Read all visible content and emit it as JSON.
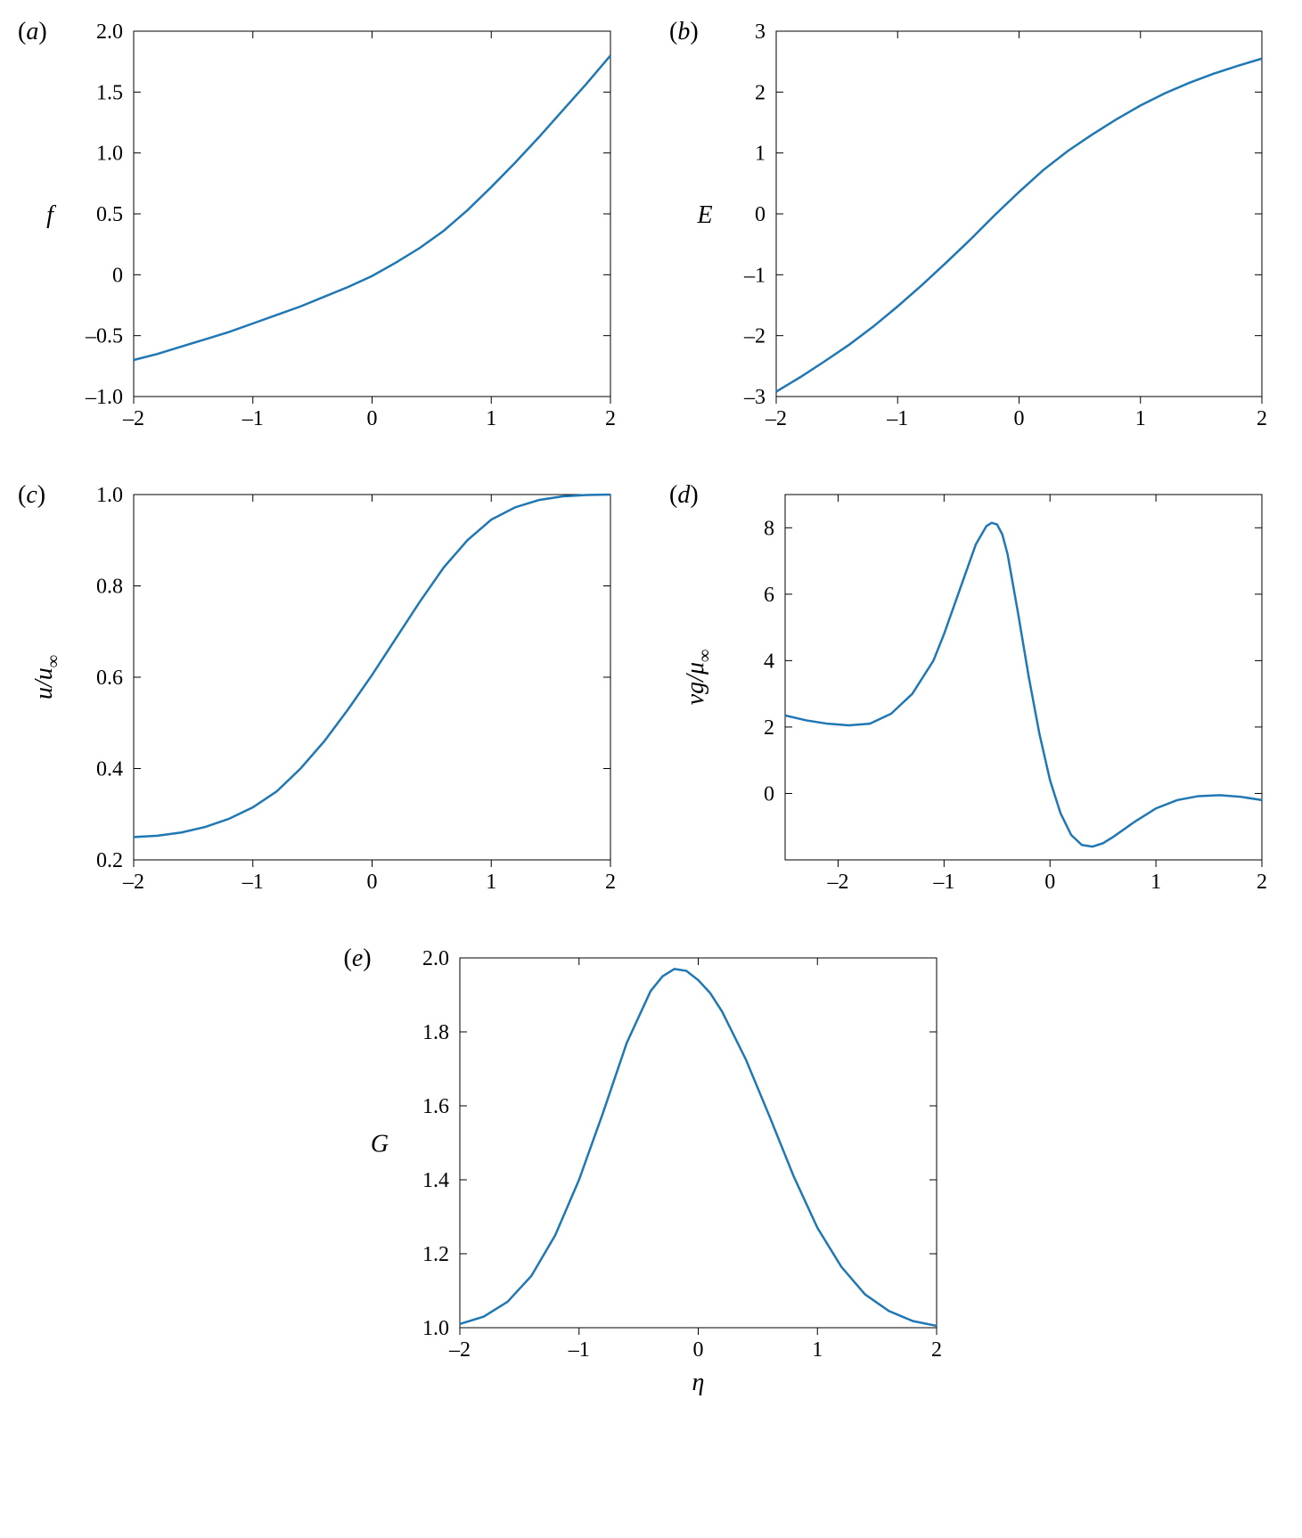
{
  "figure": {
    "background_color": "#ffffff",
    "curve_color": "#1f77b4",
    "axis_color": "#000000",
    "label_fontsize": 24,
    "title_fontsize": 28,
    "panel_label_fontsize": 28,
    "line_width": 2.5,
    "panels": {
      "a": {
        "label": "a",
        "type": "line",
        "ylabel": "f",
        "xlim": [
          -2,
          2
        ],
        "ylim": [
          -1.0,
          2.0
        ],
        "xticks": [
          -2,
          -1,
          0,
          1,
          2
        ],
        "yticks": [
          -1.0,
          -0.5,
          0,
          0.5,
          1.0,
          1.5,
          2.0
        ],
        "xtick_labels": [
          "–2",
          "–1",
          "0",
          "1",
          "2"
        ],
        "ytick_labels": [
          "–1.0",
          "–0.5",
          "0",
          "0.5",
          "1.0",
          "1.5",
          "2.0"
        ],
        "data": [
          [
            -2.0,
            -0.7
          ],
          [
            -1.8,
            -0.65
          ],
          [
            -1.6,
            -0.59
          ],
          [
            -1.4,
            -0.53
          ],
          [
            -1.2,
            -0.47
          ],
          [
            -1.0,
            -0.4
          ],
          [
            -0.8,
            -0.33
          ],
          [
            -0.6,
            -0.26
          ],
          [
            -0.4,
            -0.18
          ],
          [
            -0.2,
            -0.1
          ],
          [
            0.0,
            -0.01
          ],
          [
            0.2,
            0.1
          ],
          [
            0.4,
            0.22
          ],
          [
            0.6,
            0.36
          ],
          [
            0.8,
            0.53
          ],
          [
            1.0,
            0.72
          ],
          [
            1.2,
            0.92
          ],
          [
            1.4,
            1.13
          ],
          [
            1.6,
            1.35
          ],
          [
            1.8,
            1.57
          ],
          [
            2.0,
            1.8
          ]
        ]
      },
      "b": {
        "label": "b",
        "type": "line",
        "ylabel": "E",
        "xlim": [
          -2,
          2
        ],
        "ylim": [
          -3,
          3
        ],
        "xticks": [
          -2,
          -1,
          0,
          1,
          2
        ],
        "yticks": [
          -3,
          -2,
          -1,
          0,
          1,
          2,
          3
        ],
        "xtick_labels": [
          "–2",
          "–1",
          "0",
          "1",
          "2"
        ],
        "ytick_labels": [
          "–3",
          "–2",
          "–1",
          "0",
          "1",
          "2",
          "3"
        ],
        "data": [
          [
            -2.0,
            -2.92
          ],
          [
            -1.8,
            -2.68
          ],
          [
            -1.6,
            -2.42
          ],
          [
            -1.4,
            -2.15
          ],
          [
            -1.2,
            -1.85
          ],
          [
            -1.0,
            -1.52
          ],
          [
            -0.8,
            -1.17
          ],
          [
            -0.6,
            -0.8
          ],
          [
            -0.4,
            -0.42
          ],
          [
            -0.2,
            -0.02
          ],
          [
            0.0,
            0.36
          ],
          [
            0.2,
            0.72
          ],
          [
            0.4,
            1.03
          ],
          [
            0.6,
            1.3
          ],
          [
            0.8,
            1.55
          ],
          [
            1.0,
            1.78
          ],
          [
            1.2,
            1.98
          ],
          [
            1.4,
            2.15
          ],
          [
            1.6,
            2.3
          ],
          [
            1.8,
            2.43
          ],
          [
            2.0,
            2.55
          ]
        ]
      },
      "c": {
        "label": "c",
        "type": "line",
        "ylabel": "u/u∞",
        "ylabel_html": "u/u_∞",
        "xlim": [
          -2,
          2
        ],
        "ylim": [
          0.2,
          1.0
        ],
        "xticks": [
          -2,
          -1,
          0,
          1,
          2
        ],
        "yticks": [
          0.2,
          0.4,
          0.6,
          0.8,
          1.0
        ],
        "xtick_labels": [
          "–2",
          "–1",
          "0",
          "1",
          "2"
        ],
        "ytick_labels": [
          "0.2",
          "0.4",
          "0.6",
          "0.8",
          "1.0"
        ],
        "data": [
          [
            -2.0,
            0.25
          ],
          [
            -1.8,
            0.253
          ],
          [
            -1.6,
            0.26
          ],
          [
            -1.4,
            0.272
          ],
          [
            -1.2,
            0.29
          ],
          [
            -1.0,
            0.315
          ],
          [
            -0.8,
            0.35
          ],
          [
            -0.6,
            0.4
          ],
          [
            -0.4,
            0.46
          ],
          [
            -0.2,
            0.53
          ],
          [
            0.0,
            0.605
          ],
          [
            0.2,
            0.685
          ],
          [
            0.4,
            0.765
          ],
          [
            0.6,
            0.84
          ],
          [
            0.8,
            0.9
          ],
          [
            1.0,
            0.945
          ],
          [
            1.2,
            0.972
          ],
          [
            1.4,
            0.988
          ],
          [
            1.6,
            0.996
          ],
          [
            1.8,
            0.999
          ],
          [
            2.0,
            1.0
          ]
        ]
      },
      "d": {
        "label": "d",
        "type": "line",
        "ylabel": "vg/μ∞",
        "xlim": [
          -2.5,
          2
        ],
        "ylim": [
          -2,
          9
        ],
        "xticks": [
          -2,
          -1,
          0,
          1,
          2
        ],
        "yticks": [
          0,
          2,
          4,
          6,
          8
        ],
        "xtick_labels": [
          "–2",
          "–1",
          "0",
          "1",
          "2"
        ],
        "ytick_labels": [
          "0",
          "2",
          "4",
          "6",
          "8"
        ],
        "data": [
          [
            -2.5,
            2.35
          ],
          [
            -2.3,
            2.2
          ],
          [
            -2.1,
            2.1
          ],
          [
            -1.9,
            2.05
          ],
          [
            -1.7,
            2.1
          ],
          [
            -1.5,
            2.4
          ],
          [
            -1.3,
            3.0
          ],
          [
            -1.1,
            4.0
          ],
          [
            -1.0,
            4.8
          ],
          [
            -0.9,
            5.7
          ],
          [
            -0.8,
            6.6
          ],
          [
            -0.7,
            7.5
          ],
          [
            -0.6,
            8.05
          ],
          [
            -0.55,
            8.15
          ],
          [
            -0.5,
            8.1
          ],
          [
            -0.45,
            7.8
          ],
          [
            -0.4,
            7.2
          ],
          [
            -0.3,
            5.4
          ],
          [
            -0.2,
            3.5
          ],
          [
            -0.1,
            1.8
          ],
          [
            0.0,
            0.4
          ],
          [
            0.1,
            -0.6
          ],
          [
            0.2,
            -1.25
          ],
          [
            0.3,
            -1.55
          ],
          [
            0.4,
            -1.6
          ],
          [
            0.5,
            -1.5
          ],
          [
            0.6,
            -1.3
          ],
          [
            0.8,
            -0.85
          ],
          [
            1.0,
            -0.45
          ],
          [
            1.2,
            -0.2
          ],
          [
            1.4,
            -0.08
          ],
          [
            1.6,
            -0.05
          ],
          [
            1.8,
            -0.1
          ],
          [
            2.0,
            -0.2
          ]
        ]
      },
      "e": {
        "label": "e",
        "type": "line",
        "ylabel": "G",
        "xlabel": "η",
        "xlim": [
          -2,
          2
        ],
        "ylim": [
          1.0,
          2.0
        ],
        "xticks": [
          -2,
          -1,
          0,
          1,
          2
        ],
        "yticks": [
          1.0,
          1.2,
          1.4,
          1.6,
          1.8,
          2.0
        ],
        "xtick_labels": [
          "–2",
          "–1",
          "0",
          "1",
          "2"
        ],
        "ytick_labels": [
          "1.0",
          "1.2",
          "1.4",
          "1.6",
          "1.8",
          "2.0"
        ],
        "data": [
          [
            -2.0,
            1.01
          ],
          [
            -1.8,
            1.03
          ],
          [
            -1.6,
            1.07
          ],
          [
            -1.4,
            1.14
          ],
          [
            -1.2,
            1.25
          ],
          [
            -1.0,
            1.4
          ],
          [
            -0.8,
            1.58
          ],
          [
            -0.6,
            1.77
          ],
          [
            -0.4,
            1.91
          ],
          [
            -0.3,
            1.95
          ],
          [
            -0.2,
            1.97
          ],
          [
            -0.1,
            1.965
          ],
          [
            0.0,
            1.94
          ],
          [
            0.1,
            1.905
          ],
          [
            0.2,
            1.855
          ],
          [
            0.4,
            1.725
          ],
          [
            0.6,
            1.57
          ],
          [
            0.8,
            1.41
          ],
          [
            1.0,
            1.27
          ],
          [
            1.2,
            1.165
          ],
          [
            1.4,
            1.09
          ],
          [
            1.6,
            1.045
          ],
          [
            1.8,
            1.018
          ],
          [
            2.0,
            1.005
          ]
        ]
      }
    }
  }
}
